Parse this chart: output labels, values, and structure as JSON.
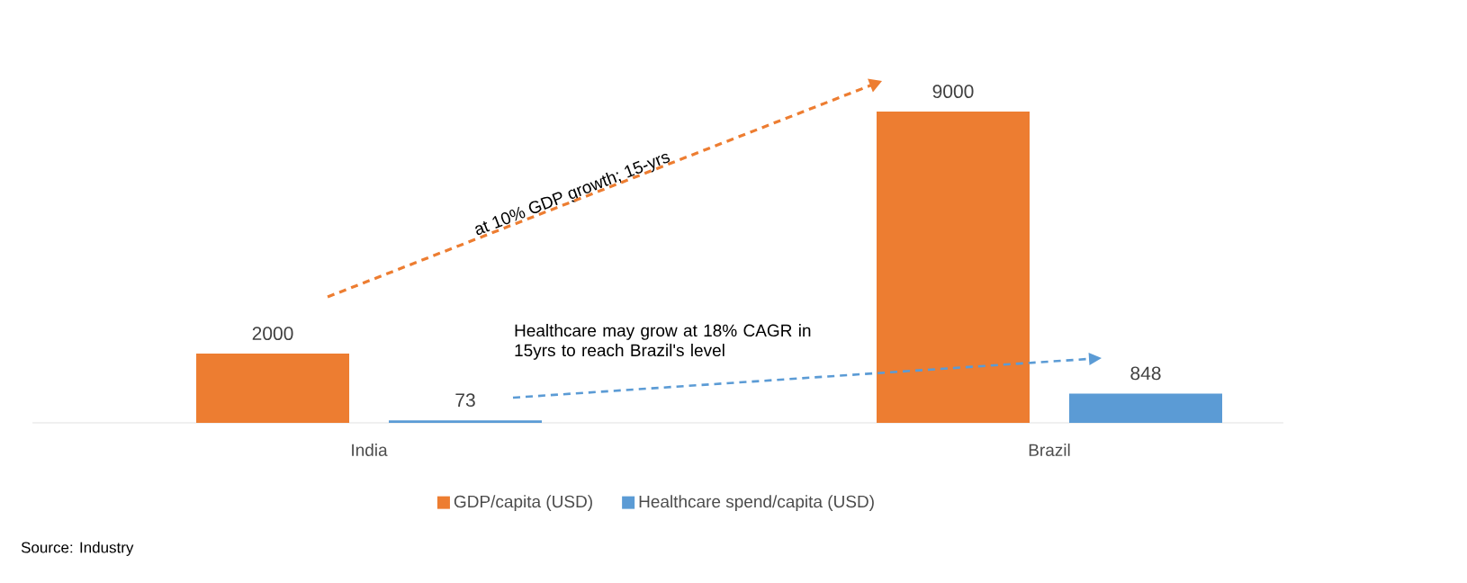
{
  "chart_data": {
    "type": "bar",
    "categories": [
      "India",
      "Brazil"
    ],
    "series": [
      {
        "name": "GDP/capita (USD)",
        "color": "#ed7d31",
        "values": [
          2000,
          9000
        ]
      },
      {
        "name": "Healthcare spend/capita  (USD)",
        "color": "#5b9bd5",
        "values": [
          73,
          848
        ]
      }
    ],
    "data_labels": true,
    "legend": "bottom",
    "tick_labels": "x",
    "annotations": [
      "at 10% GDP growth; 15-yrs",
      "Healthcare may grow at 18% CAGR in 15yrs to reach Brazil's level",
      "Source: Industry"
    ]
  }
}
